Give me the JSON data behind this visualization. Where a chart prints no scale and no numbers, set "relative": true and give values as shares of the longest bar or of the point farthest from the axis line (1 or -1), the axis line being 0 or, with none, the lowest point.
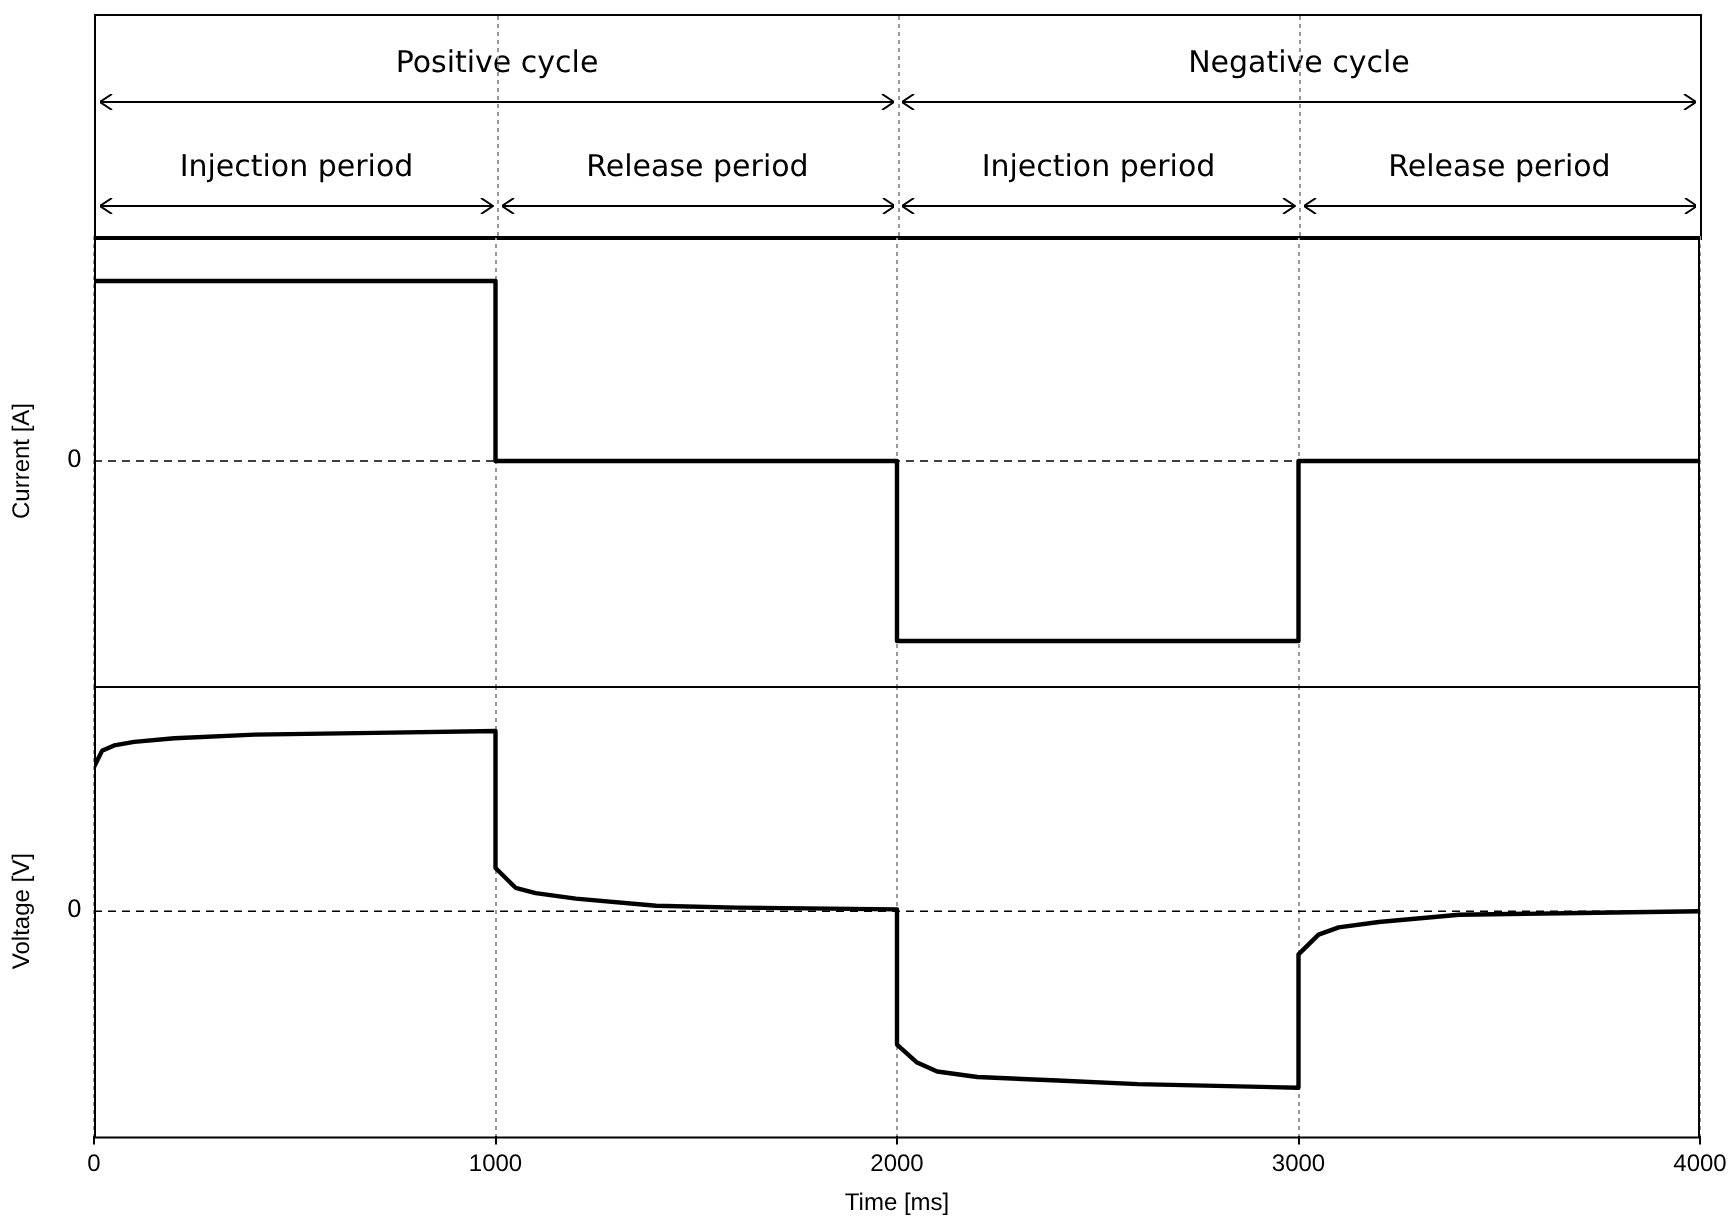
{
  "chart_data": [
    {
      "type": "other",
      "annotations": [
        "Positive cycle",
        "Negative cycle",
        "Injection period",
        "Release period",
        "Injection period",
        "Release period"
      ]
    },
    {
      "type": "line",
      "relative": true,
      "ylabel": "Current [A]",
      "xlim": [
        0,
        4000
      ],
      "xticks": [
        0,
        1000,
        2000,
        3000,
        4000
      ],
      "tick_labels": false,
      "grid": "x",
      "marker": "none",
      "line_style": "solid",
      "ref_lines": [
        {
          "axis": "y",
          "value": 0,
          "label": "0",
          "line_style": "dashed"
        }
      ],
      "series": [
        {
          "color": "#000000",
          "x": [
            0,
            1000,
            1000,
            2000,
            2000,
            3000,
            3000,
            4000
          ],
          "values": [
            1,
            1,
            0,
            0,
            -1,
            -1,
            0,
            0
          ]
        }
      ]
    },
    {
      "type": "line",
      "relative": true,
      "ylabel": "Voltage [V]",
      "xlabel": "Time [ms]",
      "xlim": [
        0,
        4000
      ],
      "xticks": [
        0,
        1000,
        2000,
        3000,
        4000
      ],
      "tick_labels": "x",
      "grid": "x",
      "marker": "none",
      "line_style": "solid",
      "ref_lines": [
        {
          "axis": "y",
          "value": 0,
          "label": "0",
          "line_style": "dashed"
        }
      ],
      "series": [
        {
          "color": "#000000",
          "x": [
            0,
            20,
            50,
            100,
            200,
            400,
            700,
            1000,
            1000,
            1050,
            1100,
            1200,
            1400,
            1600,
            2000,
            2000,
            2050,
            2100,
            2200,
            2400,
            2600,
            3000,
            3000,
            3050,
            3100,
            3200,
            3400,
            3700,
            4000
          ],
          "values": [
            0.8,
            0.89,
            0.92,
            0.94,
            0.96,
            0.98,
            0.99,
            1,
            0.24,
            0.13,
            0.1,
            0.07,
            0.03,
            0.02,
            0.01,
            -0.74,
            -0.84,
            -0.89,
            -0.92,
            -0.94,
            -0.96,
            -0.98,
            -0.24,
            -0.13,
            -0.09,
            -0.06,
            -0.02,
            -0.01,
            0
          ]
        }
      ]
    }
  ]
}
